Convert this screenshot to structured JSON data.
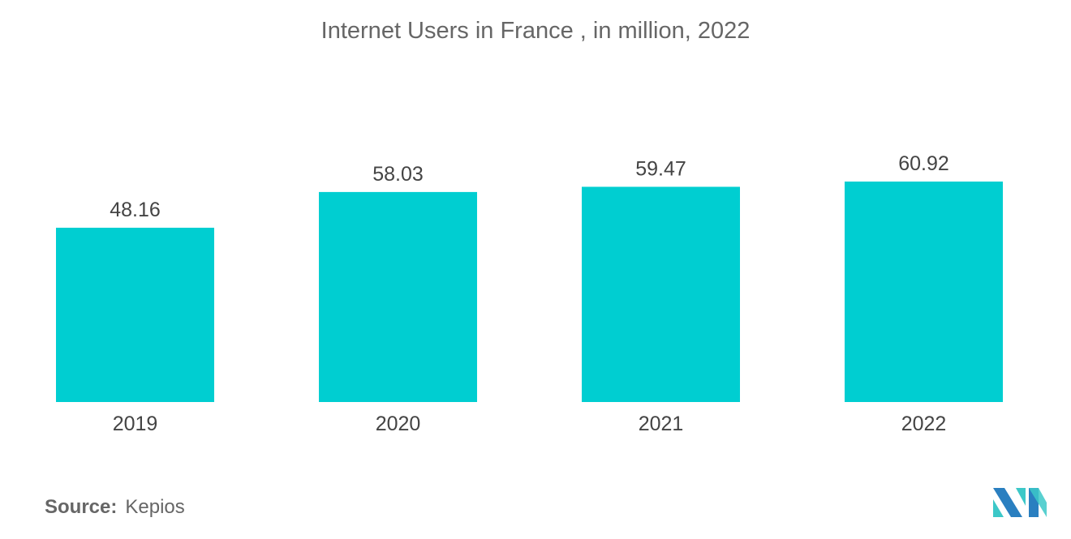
{
  "chart_data": {
    "type": "bar",
    "title": "Internet Users in France , in million, 2022",
    "categories": [
      "2019",
      "2020",
      "2021",
      "2022"
    ],
    "values": [
      48.16,
      58.03,
      59.47,
      60.92
    ],
    "value_labels": [
      "48.16",
      "58.03",
      "59.47",
      "60.92"
    ],
    "xlabel": "",
    "ylabel": "",
    "ylim": [
      0,
      61
    ],
    "grid": false,
    "bar_color": "#00ced1"
  },
  "source": {
    "label": "Source:",
    "value": "Kepios"
  },
  "logo": {
    "text": "Mordor Intelligence",
    "colors": [
      "#2a7fc0",
      "#3cc8c8"
    ]
  }
}
